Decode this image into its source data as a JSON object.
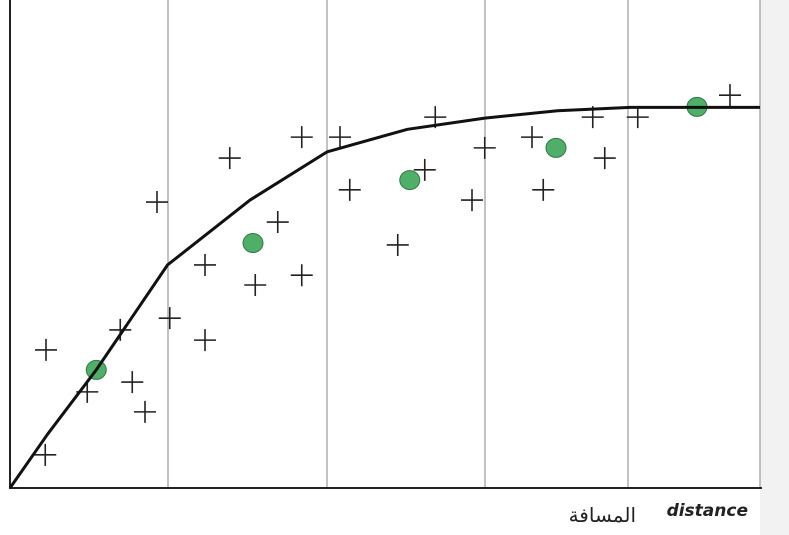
{
  "chart_data": {
    "type": "scatter",
    "xlabel": "distance",
    "xlabel_ar": "المسافة",
    "xlim": [
      0,
      100
    ],
    "ylim": [
      0,
      100
    ],
    "series": [
      {
        "marker": "plus",
        "color": "#222222",
        "x": [
          4.8,
          4.7,
          10.3,
          14.7,
          16.3,
          18,
          19.6,
          21.3,
          26,
          26,
          29.3,
          32.7,
          35.7,
          38.9,
          38.9,
          44,
          45.3,
          51.7,
          55.3,
          56.7,
          61.6,
          63.3,
          69.6,
          71.1,
          77.7,
          79.3,
          83.7,
          96
        ],
        "values": [
          28.3,
          6.8,
          19.7,
          32.4,
          21.7,
          15.6,
          58.6,
          34.8,
          45.7,
          30.3,
          67.6,
          41.6,
          54.5,
          71.9,
          43.6,
          71.9,
          61.1,
          49.8,
          65.2,
          76,
          59,
          69.7,
          71.9,
          61.1,
          76,
          67.6,
          76,
          80.5
        ]
      },
      {
        "marker": "circle",
        "color": "#4fae68",
        "x": [
          11.5,
          32.4,
          53.3,
          72.8,
          91.6
        ],
        "values": [
          24.2,
          50.2,
          63.1,
          69.7,
          78.1
        ]
      },
      {
        "marker": "line",
        "color": "#111111",
        "x": [
          0,
          5,
          11.5,
          21,
          32,
          42.3,
          53,
          63.3,
          73,
          82.7,
          100
        ],
        "values": [
          0,
          11,
          24.2,
          45.7,
          59,
          68.9,
          73.5,
          75.8,
          77.3,
          78,
          78
        ]
      }
    ]
  }
}
